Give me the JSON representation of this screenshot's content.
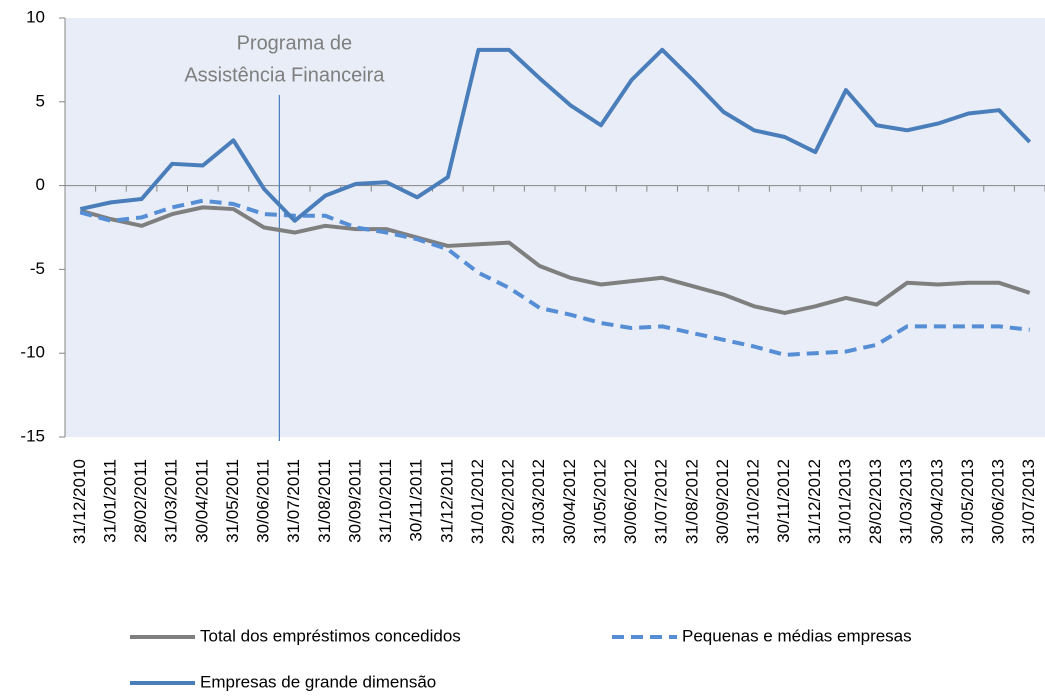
{
  "chart_data": {
    "type": "line",
    "categories": [
      "31/12/2010",
      "31/01/2011",
      "28/02/2011",
      "31/03/2011",
      "30/04/2011",
      "31/05/2011",
      "30/06/2011",
      "31/07/2011",
      "31/08/2011",
      "30/09/2011",
      "31/10/2011",
      "30/11/2011",
      "31/12/2011",
      "31/01/2012",
      "29/02/2012",
      "31/03/2012",
      "30/04/2012",
      "31/05/2012",
      "30/06/2012",
      "31/07/2012",
      "31/08/2012",
      "30/09/2012",
      "31/10/2012",
      "30/11/2012",
      "31/12/2012",
      "31/01/2013",
      "28/02/2013",
      "31/03/2013",
      "30/04/2013",
      "31/05/2013",
      "30/06/2013",
      "31/07/2013"
    ],
    "series": [
      {
        "name": "Total dos empréstimos concedidos",
        "color": "#7f7f7f",
        "style": "solid",
        "values": [
          -1.5,
          -2.0,
          -2.4,
          -1.7,
          -1.3,
          -1.4,
          -2.5,
          -2.8,
          -2.4,
          -2.6,
          -2.6,
          -3.1,
          -3.6,
          -3.5,
          -3.4,
          -4.8,
          -5.5,
          -5.9,
          -5.7,
          -5.5,
          -6.0,
          -6.5,
          -7.2,
          -7.6,
          -7.2,
          -6.7,
          -7.1,
          -5.8,
          -5.9,
          -5.8,
          -5.8,
          -6.4
        ]
      },
      {
        "name": "Pequenas e médias empresas",
        "color": "#558ed5",
        "style": "dashed",
        "values": [
          -1.6,
          -2.1,
          -1.9,
          -1.3,
          -0.9,
          -1.1,
          -1.7,
          -1.8,
          -1.8,
          -2.5,
          -2.8,
          -3.2,
          -3.8,
          -5.2,
          -6.1,
          -7.3,
          -7.7,
          -8.2,
          -8.5,
          -8.4,
          -8.8,
          -9.2,
          -9.6,
          -10.1,
          -10.0,
          -9.9,
          -9.5,
          -8.4,
          -8.4,
          -8.4,
          -8.4,
          -8.6
        ]
      },
      {
        "name": "Empresas de grande dimensão",
        "color": "#4a7ebb",
        "style": "solid",
        "values": [
          -1.4,
          -1.0,
          -0.8,
          1.3,
          1.2,
          2.7,
          -0.2,
          -2.1,
          -0.6,
          0.1,
          0.2,
          -0.7,
          0.5,
          8.1,
          8.1,
          6.4,
          4.8,
          3.6,
          6.3,
          8.1,
          6.3,
          4.4,
          3.3,
          2.9,
          2.0,
          5.7,
          3.6,
          3.3,
          3.7,
          4.3,
          4.5,
          2.6
        ]
      }
    ],
    "annotation": [
      "Programa de",
      "Assistência Financeira"
    ],
    "ylim": [
      -15,
      10
    ],
    "yticks": [
      -15,
      -10,
      -5,
      0,
      5,
      10
    ],
    "plot_background": "#e9edf7",
    "grid": false,
    "legend": "bottom"
  }
}
